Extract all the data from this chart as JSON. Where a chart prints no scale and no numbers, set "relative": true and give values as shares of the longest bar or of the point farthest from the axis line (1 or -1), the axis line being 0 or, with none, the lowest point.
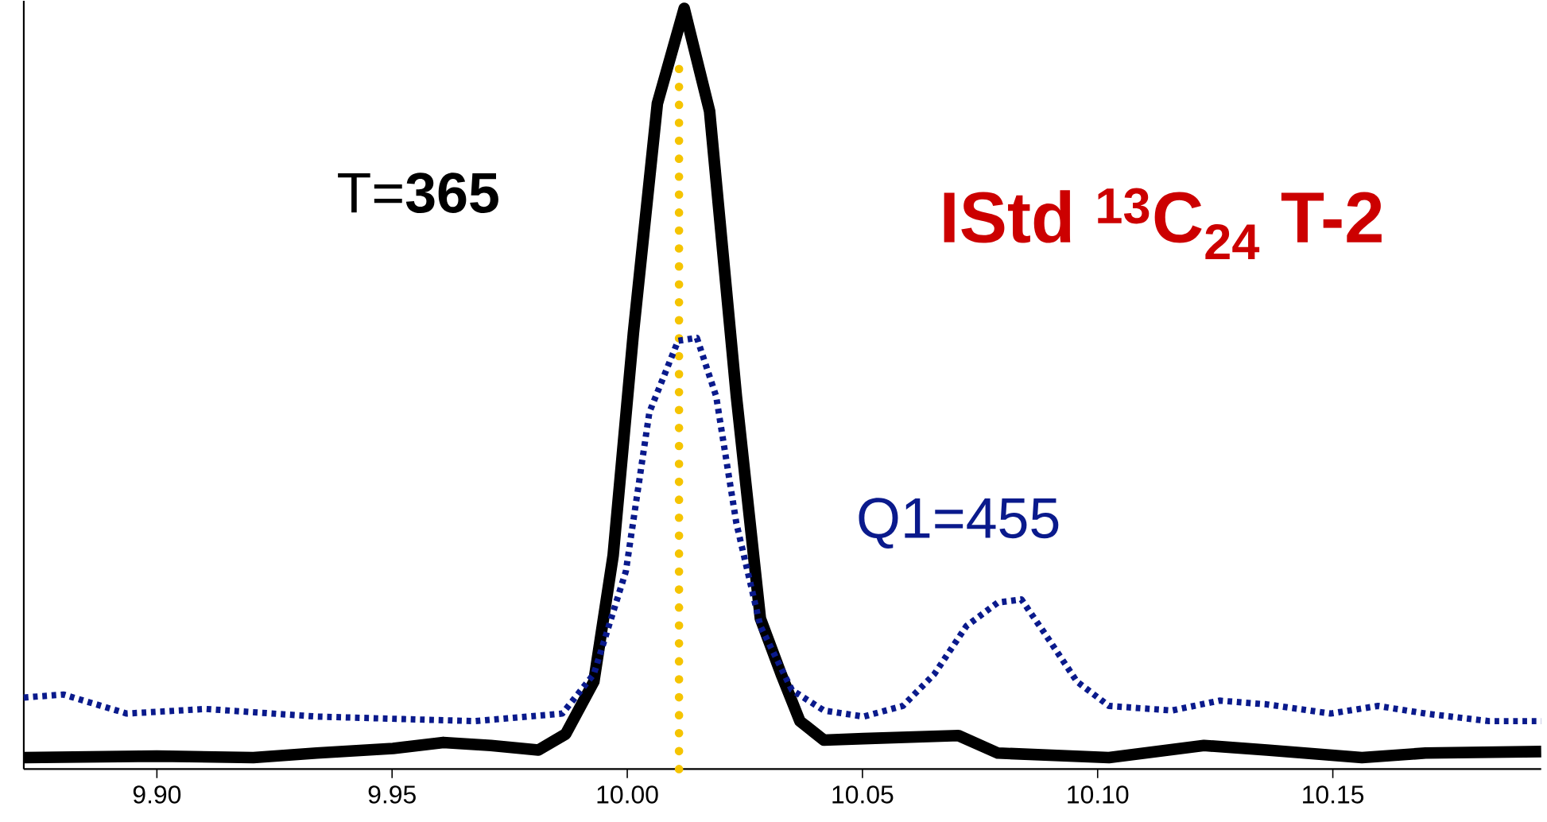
{
  "chart_data": {
    "type": "line",
    "title": "**IStd $^{13}$C$_{24}$ T-2**",
    "relative": true,
    "xlim": [
      9.8717,
      10.1943
    ],
    "xticks": [
      {
        "value": 9.9,
        "label": "9.90"
      },
      9.95,
      {
        "value": 10.0,
        "label": "10.00"
      },
      10.05,
      {
        "value": 10.1,
        "label": "10.10"
      },
      10.15
    ],
    "ref_lines": [
      {
        "axis": "x",
        "value": 10.011,
        "color": "#f5c400",
        "line_style": "dotted"
      }
    ],
    "series": [
      {
        "name": "T=**365**",
        "color": "#000000",
        "line_style": "solid",
        "x": [
          9.8717,
          9.9,
          9.9205,
          9.934,
          9.9502,
          9.9609,
          9.971,
          9.9811,
          9.9869,
          9.9929,
          9.997,
          10.0013,
          10.0064,
          10.0121,
          10.0175,
          10.0232,
          10.0283,
          10.0327,
          10.0367,
          10.0418,
          10.0502,
          10.0704,
          10.0788,
          10.1024,
          10.1226,
          10.136,
          10.1562,
          10.1697,
          10.1943
        ],
        "values": [
          0.015,
          0.017,
          0.015,
          0.021,
          0.027,
          0.035,
          0.031,
          0.025,
          0.046,
          0.115,
          0.281,
          0.573,
          0.875,
          1.0,
          0.865,
          0.49,
          0.198,
          0.125,
          0.063,
          0.038,
          0.04,
          0.044,
          0.021,
          0.015,
          0.031,
          0.025,
          0.015,
          0.021,
          0.023
        ]
      },
      {
        "name": "Q1=455",
        "color": "#0a1a8c",
        "line_style": "dotted",
        "x": [
          9.8717,
          9.8801,
          9.8936,
          9.9104,
          9.934,
          9.9677,
          9.9862,
          9.9929,
          9.9997,
          10.0047,
          10.0108,
          10.0148,
          10.0189,
          10.0232,
          10.0283,
          10.035,
          10.0418,
          10.0502,
          10.0586,
          10.0653,
          10.0721,
          10.0788,
          10.0838,
          10.0889,
          10.0956,
          10.1024,
          10.1158,
          10.1259,
          10.136,
          10.1495,
          10.1596,
          10.1697,
          10.1832,
          10.1943
        ],
        "values": [
          0.094,
          0.098,
          0.073,
          0.079,
          0.069,
          0.063,
          0.073,
          0.125,
          0.26,
          0.469,
          0.563,
          0.567,
          0.49,
          0.323,
          0.188,
          0.104,
          0.077,
          0.069,
          0.083,
          0.125,
          0.188,
          0.219,
          0.223,
          0.177,
          0.115,
          0.083,
          0.077,
          0.09,
          0.085,
          0.073,
          0.083,
          0.073,
          0.063,
          0.063
        ]
      }
    ]
  }
}
